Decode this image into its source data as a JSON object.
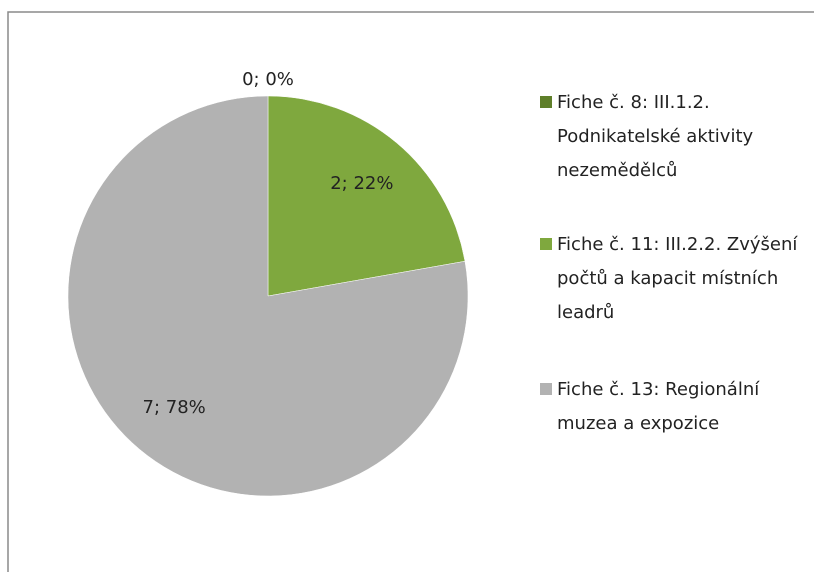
{
  "chart_data": {
    "type": "pie",
    "categories": [
      "Fiche č. 8: III.1.2. Podnikatelské aktivity nezemědělců",
      "Fiche č. 11: III.2.2. Zvýšení počtů a kapacit místních leadrů",
      "Fiche č. 13: Regionální muzea a expozice"
    ],
    "values": [
      0,
      2,
      7
    ],
    "value_labels": [
      "0; 0%",
      "2; 22%",
      "7; 78%"
    ],
    "colors": [
      "#5f7f2a",
      "#7fa83e",
      "#b2b2b2"
    ]
  }
}
